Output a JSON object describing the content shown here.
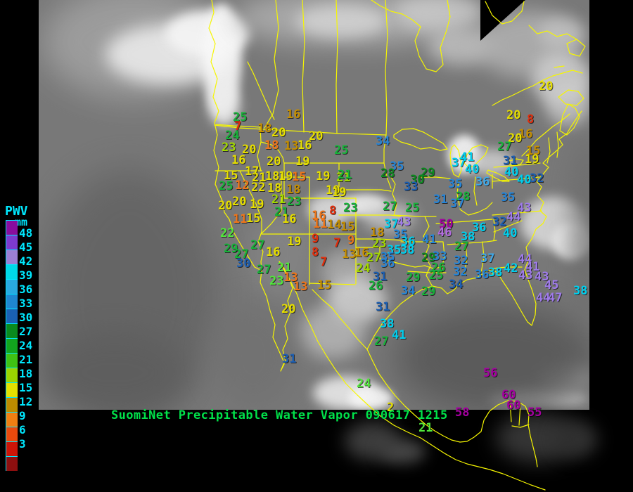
{
  "legend": {
    "title": "PWV",
    "unit": "mm",
    "text_color": "#00e8ff",
    "values": [
      "48",
      "45",
      "42",
      "39",
      "36",
      "33",
      "30",
      "27",
      "24",
      "21",
      "18",
      "15",
      "12",
      "9",
      "6",
      "3"
    ],
    "block_colors": [
      "#8a0d9e",
      "#7d3ad0",
      "#9b7fd4",
      "#00d9e8",
      "#29a9e0",
      "#1f86d0",
      "#1a61b5",
      "#0a8a1e",
      "#12a51e",
      "#3fc213",
      "#9bd400",
      "#e3e000",
      "#bd8c00",
      "#f07f12",
      "#ea4a0d",
      "#cc1507",
      "#8e0f0f"
    ]
  },
  "footer": {
    "caption": "SuomiNet Precipitable Water Vapor ",
    "timestamp": "090617 1215",
    "text_color": "#00e24a"
  },
  "map": {
    "outline_color": "#f6f600",
    "palette": {
      "purple": "#9f7bea",
      "violet": "#b36ae0",
      "magenta": "#a400a0",
      "cyan": "#00cfee",
      "ltblue": "#3fa8e8",
      "blue": "#2585d8",
      "dkblue": "#1d5fb2",
      "dkgreen": "#0c8a20",
      "green": "#17b33a",
      "ltgreen": "#52e63c",
      "ygreen": "#a2d800",
      "yellow": "#e6de00",
      "gold": "#c68f00",
      "orange": "#f0761a",
      "red": "#e22e0c"
    },
    "stations": [
      [
        "25",
        331,
        160,
        "green"
      ],
      [
        "7",
        333,
        173,
        "red"
      ],
      [
        "24",
        320,
        186,
        "green"
      ],
      [
        "16",
        407,
        156,
        "gold"
      ],
      [
        "18",
        366,
        176,
        "gold"
      ],
      [
        "20",
        386,
        182,
        "yellow"
      ],
      [
        "20",
        439,
        187,
        "yellow"
      ],
      [
        "23",
        315,
        203,
        "ygreen"
      ],
      [
        "20",
        344,
        206,
        "yellow"
      ],
      [
        "18",
        376,
        200,
        "orange"
      ],
      [
        "13",
        404,
        201,
        "gold"
      ],
      [
        "16",
        423,
        200,
        "yellow"
      ],
      [
        "25",
        475,
        207,
        "green"
      ],
      [
        "16",
        329,
        221,
        "yellow"
      ],
      [
        "20",
        379,
        223,
        "yellow"
      ],
      [
        "19",
        420,
        223,
        "yellow"
      ],
      [
        "15",
        318,
        243,
        "yellow"
      ],
      [
        "17",
        348,
        237,
        "yellow"
      ],
      [
        "21",
        358,
        246,
        "yellow"
      ],
      [
        "18",
        377,
        244,
        "yellow"
      ],
      [
        "19",
        396,
        244,
        "yellow"
      ],
      [
        "15",
        415,
        245,
        "orange"
      ],
      [
        "19",
        449,
        244,
        "yellow"
      ],
      [
        "21",
        478,
        246,
        "ygreen"
      ],
      [
        "25",
        311,
        258,
        "green"
      ],
      [
        "12",
        334,
        257,
        "orange"
      ],
      [
        "22",
        357,
        260,
        "yellow"
      ],
      [
        "18",
        380,
        261,
        "yellow"
      ],
      [
        "18",
        407,
        263,
        "gold"
      ],
      [
        "19",
        463,
        264,
        "yellow"
      ],
      [
        "20",
        310,
        286,
        "yellow"
      ],
      [
        "20",
        330,
        280,
        "yellow"
      ],
      [
        "19",
        355,
        284,
        "yellow"
      ],
      [
        "21",
        386,
        277,
        "ygreen"
      ],
      [
        "23",
        408,
        280,
        "green"
      ],
      [
        "11",
        331,
        305,
        "orange"
      ],
      [
        "15",
        350,
        304,
        "yellow"
      ],
      [
        "21",
        390,
        295,
        "green"
      ],
      [
        "16",
        401,
        305,
        "yellow"
      ],
      [
        "22",
        313,
        325,
        "ltgreen"
      ],
      [
        "29",
        318,
        347,
        "green"
      ],
      [
        "27",
        356,
        342,
        "green"
      ],
      [
        "27",
        333,
        355,
        "green"
      ],
      [
        "30",
        336,
        368,
        "dkblue"
      ],
      [
        "16",
        378,
        352,
        "yellow"
      ],
      [
        "19",
        408,
        337,
        "yellow"
      ],
      [
        "27",
        365,
        377,
        "green"
      ],
      [
        "21",
        394,
        374,
        "ltgreen"
      ],
      [
        "23",
        383,
        393,
        "ltgreen"
      ],
      [
        "13",
        403,
        388,
        "orange"
      ],
      [
        "13",
        417,
        401,
        "orange"
      ],
      [
        "15",
        451,
        399,
        "gold"
      ],
      [
        "20",
        400,
        433,
        "yellow"
      ],
      [
        "31",
        401,
        504,
        "dkblue"
      ],
      [
        "8",
        468,
        293,
        "red"
      ],
      [
        "16",
        443,
        300,
        "orange"
      ],
      [
        "11",
        445,
        312,
        "orange"
      ],
      [
        "14",
        465,
        313,
        "gold"
      ],
      [
        "15",
        484,
        316,
        "gold"
      ],
      [
        "9",
        443,
        333,
        "red"
      ],
      [
        "7",
        474,
        339,
        "red"
      ],
      [
        "9",
        494,
        335,
        "orange"
      ],
      [
        "8",
        443,
        352,
        "red"
      ],
      [
        "7",
        455,
        366,
        "red"
      ],
      [
        "13",
        486,
        355,
        "gold"
      ],
      [
        "16",
        504,
        353,
        "gold"
      ],
      [
        "18",
        526,
        324,
        "gold"
      ],
      [
        "23",
        529,
        340,
        "ygreen"
      ],
      [
        "27",
        521,
        360,
        "ygreen"
      ],
      [
        "24",
        506,
        375,
        "ygreen"
      ],
      [
        "34",
        534,
        194,
        "blue"
      ],
      [
        "35",
        554,
        230,
        "blue"
      ],
      [
        "28",
        541,
        240,
        "dkgreen"
      ],
      [
        "29",
        598,
        239,
        "dkgreen"
      ],
      [
        "30",
        583,
        249,
        "dkgreen"
      ],
      [
        "33",
        574,
        259,
        "dkblue"
      ],
      [
        "21",
        480,
        242,
        "green"
      ],
      [
        "19",
        472,
        267,
        "yellow"
      ],
      [
        "23",
        488,
        289,
        "green"
      ],
      [
        "27",
        544,
        287,
        "green"
      ],
      [
        "25",
        576,
        289,
        "green"
      ],
      [
        "37",
        546,
        312,
        "cyan"
      ],
      [
        "43",
        564,
        309,
        "purple"
      ],
      [
        "35",
        559,
        327,
        "blue"
      ],
      [
        "36",
        570,
        337,
        "cyan"
      ],
      [
        "35",
        550,
        349,
        "cyan"
      ],
      [
        "38",
        569,
        349,
        "cyan"
      ],
      [
        "35",
        541,
        359,
        "blue"
      ],
      [
        "36",
        541,
        368,
        "blue"
      ],
      [
        "41",
        600,
        334,
        "blue"
      ],
      [
        "50",
        624,
        312,
        "magenta"
      ],
      [
        "46",
        622,
        324,
        "violet"
      ],
      [
        "31",
        530,
        387,
        "dkblue"
      ],
      [
        "29",
        577,
        388,
        "green"
      ],
      [
        "26",
        524,
        400,
        "green"
      ],
      [
        "34",
        570,
        407,
        "blue"
      ],
      [
        "29",
        599,
        408,
        "green"
      ],
      [
        "37",
        642,
        225,
        "cyan"
      ],
      [
        "41",
        654,
        217,
        "cyan"
      ],
      [
        "40",
        661,
        234,
        "cyan"
      ],
      [
        "36",
        676,
        252,
        "ltblue"
      ],
      [
        "35",
        637,
        255,
        "blue"
      ],
      [
        "31",
        616,
        277,
        "blue"
      ],
      [
        "28",
        648,
        273,
        "green"
      ],
      [
        "37",
        640,
        283,
        "blue"
      ],
      [
        "27",
        646,
        344,
        "green"
      ],
      [
        "29",
        599,
        360,
        "dkgreen"
      ],
      [
        "33",
        615,
        358,
        "blue"
      ],
      [
        "26",
        613,
        374,
        "green"
      ],
      [
        "25",
        610,
        385,
        "green"
      ],
      [
        "32",
        645,
        364,
        "blue"
      ],
      [
        "37",
        683,
        361,
        "ltblue"
      ],
      [
        "32",
        644,
        380,
        "blue"
      ],
      [
        "36",
        675,
        384,
        "blue"
      ],
      [
        "38",
        694,
        381,
        "cyan"
      ],
      [
        "34",
        638,
        398,
        "dkblue"
      ],
      [
        "42",
        716,
        375,
        "cyan"
      ],
      [
        "44",
        736,
        362,
        "purple"
      ],
      [
        "41",
        747,
        373,
        "purple"
      ],
      [
        "43",
        737,
        385,
        "purple"
      ],
      [
        "43",
        760,
        387,
        "purple"
      ],
      [
        "45",
        774,
        399,
        "purple"
      ],
      [
        "44",
        762,
        417,
        "purple"
      ],
      [
        "47",
        779,
        417,
        "purple"
      ],
      [
        "38",
        815,
        407,
        "cyan"
      ],
      [
        "36",
        671,
        317,
        "cyan"
      ],
      [
        "38",
        655,
        330,
        "cyan"
      ],
      [
        "32",
        700,
        309,
        "dkblue"
      ],
      [
        "40",
        715,
        325,
        "cyan"
      ],
      [
        "44",
        720,
        302,
        "purple"
      ],
      [
        "43",
        735,
        289,
        "purple"
      ],
      [
        "31",
        534,
        430,
        "dkblue"
      ],
      [
        "38",
        540,
        454,
        "cyan"
      ],
      [
        "41",
        557,
        470,
        "cyan"
      ],
      [
        "27",
        532,
        479,
        "green"
      ],
      [
        "24",
        507,
        539,
        "ltgreen"
      ],
      [
        "20",
        720,
        157,
        "yellow"
      ],
      [
        "8",
        749,
        163,
        "red"
      ],
      [
        "20",
        766,
        116,
        "yellow"
      ],
      [
        "16",
        737,
        184,
        "gold"
      ],
      [
        "20",
        722,
        190,
        "yellow"
      ],
      [
        "27",
        707,
        202,
        "green"
      ],
      [
        "15",
        748,
        208,
        "gold"
      ],
      [
        "19",
        746,
        220,
        "yellow"
      ],
      [
        "31",
        715,
        222,
        "dkblue"
      ],
      [
        "40",
        717,
        238,
        "cyan"
      ],
      [
        "40",
        735,
        249,
        "cyan"
      ],
      [
        "32",
        753,
        247,
        "dkblue"
      ],
      [
        "35",
        712,
        274,
        "blue"
      ],
      [
        "56",
        687,
        524,
        "magenta"
      ],
      [
        "60",
        713,
        555,
        "magenta"
      ],
      [
        "60",
        720,
        570,
        "magenta"
      ],
      [
        "58",
        647,
        580,
        "magenta"
      ],
      [
        "55",
        750,
        580,
        "magenta"
      ],
      [
        "21",
        595,
        602,
        "ltgreen"
      ],
      [
        "2",
        550,
        573,
        "yellow"
      ]
    ]
  }
}
